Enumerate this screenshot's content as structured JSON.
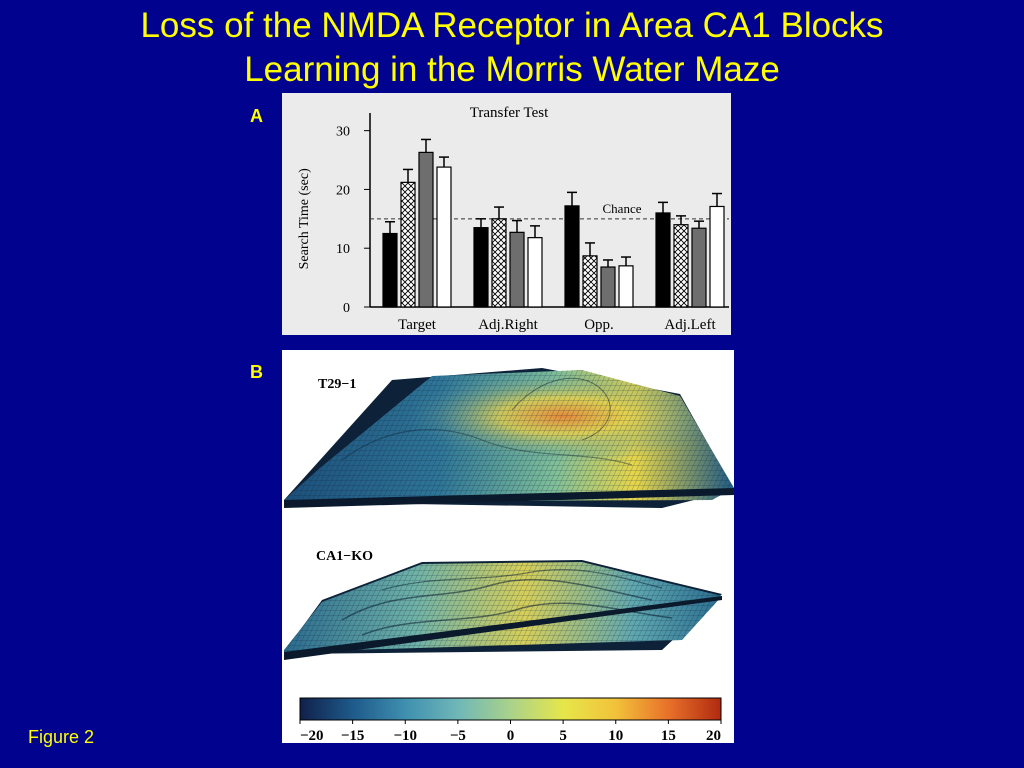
{
  "slide": {
    "title_line1": "Loss of the NMDA Receptor in Area CA1 Blocks",
    "title_line2": "Learning in the Morris Water Maze",
    "figure_label": "Figure 2"
  },
  "panels": {
    "a_label": "A",
    "b_label": "B"
  },
  "chart_data": [
    {
      "type": "bar",
      "title": "Transfer Test",
      "ylabel": "Search Time (sec)",
      "categories": [
        "Target",
        "Adj.Right",
        "Opp.",
        "Adj.Left"
      ],
      "yticks": [
        0,
        10,
        20,
        30
      ],
      "ylim": [
        0,
        33
      ],
      "reference_line": {
        "label": "Chance",
        "value": 15
      },
      "series": [
        {
          "fill": "black",
          "values": [
            12.5,
            13.5,
            17.2,
            16.0
          ],
          "errors": [
            2.0,
            1.5,
            2.3,
            1.8
          ]
        },
        {
          "fill": "hatched",
          "values": [
            21.2,
            15.0,
            8.7,
            14.0
          ],
          "errors": [
            2.2,
            2.0,
            2.2,
            1.5
          ]
        },
        {
          "fill": "gray",
          "values": [
            26.3,
            12.7,
            6.8,
            13.4
          ],
          "errors": [
            2.2,
            2.0,
            1.2,
            1.2
          ]
        },
        {
          "fill": "white",
          "values": [
            23.8,
            11.8,
            7.0,
            17.1
          ],
          "errors": [
            1.7,
            2.0,
            1.5,
            2.2
          ]
        }
      ],
      "grid": false
    },
    {
      "type": "heatmap",
      "surfaces": [
        {
          "label": "T29−1"
        },
        {
          "label": "CA1−KO"
        }
      ],
      "colorbar": {
        "ticks": [
          "−20",
          "−15",
          "−10",
          "−5",
          "0",
          "5",
          "10",
          "15",
          "20"
        ],
        "colors": [
          "#10204a",
          "#1e5a8a",
          "#3f8fb0",
          "#6fb7b8",
          "#a9d28a",
          "#e6e64a",
          "#f2c23a",
          "#e8712a",
          "#b02a10"
        ]
      }
    }
  ]
}
